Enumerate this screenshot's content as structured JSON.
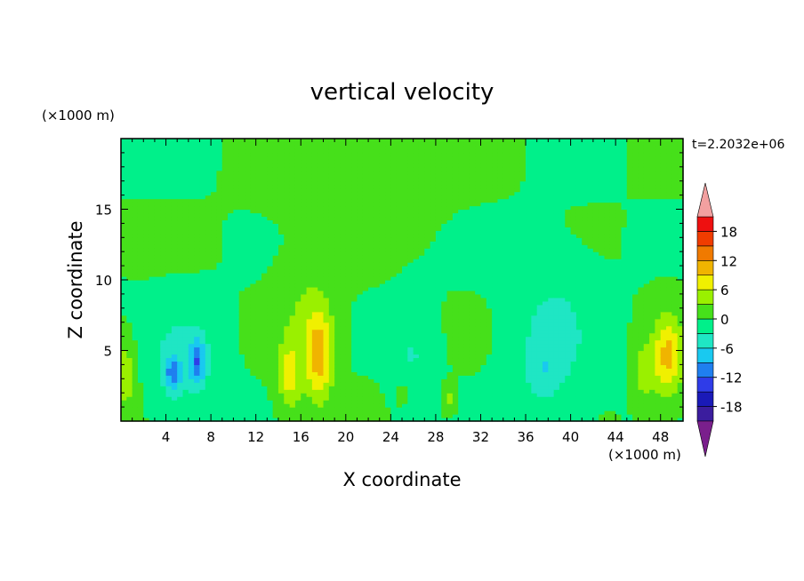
{
  "chart_data": {
    "type": "heatmap",
    "title": "vertical velocity",
    "xlabel": "X coordinate",
    "ylabel": "Z coordinate",
    "x_unit": "(×1000 m)",
    "y_unit": "(×1000 m)",
    "time_label": "t=2.2032e+06",
    "xlim": [
      0,
      50
    ],
    "ylim": [
      0,
      20
    ],
    "x_ticks": [
      4,
      8,
      12,
      16,
      20,
      24,
      28,
      32,
      36,
      40,
      44,
      48
    ],
    "y_ticks": [
      5,
      10,
      15
    ],
    "colorbar": {
      "levels": [
        -21,
        -18,
        -15,
        -12,
        -9,
        -6,
        -3,
        0,
        3,
        6,
        9,
        12,
        15,
        18,
        21
      ],
      "labeled_ticks": [
        -18,
        -12,
        -6,
        0,
        6,
        12,
        18
      ],
      "colors": [
        "#7a1f8c",
        "#3b1d9e",
        "#1a1ab8",
        "#2f3ce8",
        "#1f7fef",
        "#19c9f0",
        "#1fe6c4",
        "#00f08a",
        "#46e01a",
        "#9af000",
        "#f0f000",
        "#f0b400",
        "#f07a00",
        "#f03c00",
        "#ee1010",
        "#f2a0a0"
      ],
      "extend": "both"
    },
    "features": [
      {
        "x": 17.6,
        "z": 4.6,
        "sx": 1.2,
        "sz": 3.2,
        "amp": 10
      },
      {
        "x": 15.0,
        "z": 3.2,
        "sx": 1.0,
        "sz": 2.4,
        "amp": 7
      },
      {
        "x": 16.4,
        "z": 7.5,
        "sx": 2.5,
        "sz": 4.0,
        "amp": 3
      },
      {
        "x": 48.6,
        "z": 4.6,
        "sx": 1.3,
        "sz": 2.8,
        "amp": 10
      },
      {
        "x": 46.5,
        "z": 3.5,
        "sx": 0.9,
        "sz": 2.0,
        "amp": 5
      },
      {
        "x": 0.4,
        "z": 3.2,
        "sx": 0.9,
        "sz": 2.2,
        "amp": 6
      },
      {
        "x": 29.2,
        "z": 1.6,
        "sx": 0.6,
        "sz": 0.9,
        "amp": 4
      },
      {
        "x": 25.0,
        "z": 2.0,
        "sx": 0.5,
        "sz": 0.8,
        "amp": 3
      },
      {
        "x": 6.8,
        "z": 4.2,
        "sx": 0.7,
        "sz": 1.6,
        "amp": -9
      },
      {
        "x": 4.6,
        "z": 3.3,
        "sx": 0.7,
        "sz": 1.3,
        "amp": -8
      },
      {
        "x": 5.5,
        "z": 4.5,
        "sx": 3.0,
        "sz": 3.5,
        "amp": -4
      },
      {
        "x": 26.0,
        "z": 4.5,
        "sx": 1.8,
        "sz": 4.0,
        "amp": -3
      },
      {
        "x": 38.5,
        "z": 6.0,
        "sx": 3.5,
        "sz": 5.0,
        "amp": -4
      },
      {
        "x": 37.5,
        "z": 3.5,
        "sx": 1.5,
        "sz": 2.0,
        "amp": -3
      },
      {
        "x": 21.0,
        "z": 16.5,
        "sx": 6.0,
        "sz": 3.0,
        "amp": 2
      }
    ]
  }
}
